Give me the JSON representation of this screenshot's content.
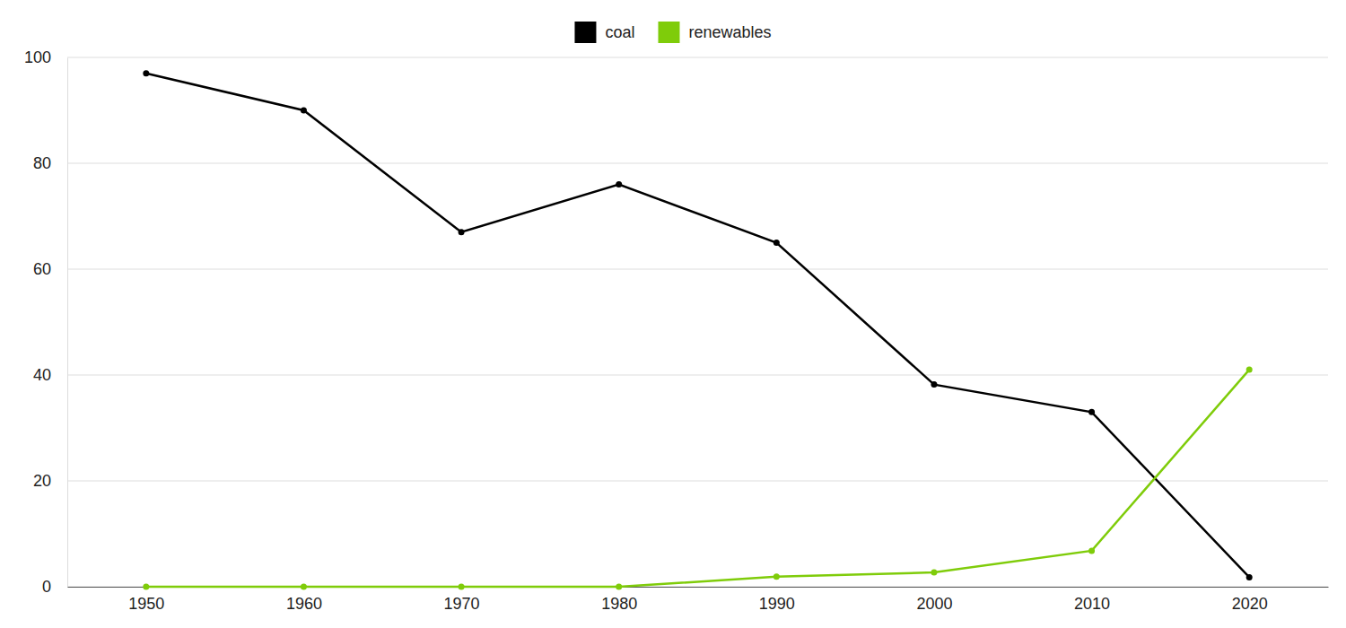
{
  "chart_data": {
    "type": "line",
    "categories": [
      "1950",
      "1960",
      "1970",
      "1980",
      "1990",
      "2000",
      "2010",
      "2020"
    ],
    "series": [
      {
        "name": "coal",
        "color": "#000000",
        "values": [
          97,
          90,
          67,
          76,
          65,
          38.2,
          33,
          1.8
        ]
      },
      {
        "name": "renewables",
        "color": "#7fcc0a",
        "values": [
          0,
          0,
          0,
          0,
          1.9,
          2.7,
          6.8,
          41
        ]
      }
    ],
    "ylim": [
      0,
      100
    ],
    "yticks": [
      0,
      20,
      40,
      60,
      80,
      100
    ],
    "grid": true,
    "legend": "top",
    "marker": "circle"
  }
}
